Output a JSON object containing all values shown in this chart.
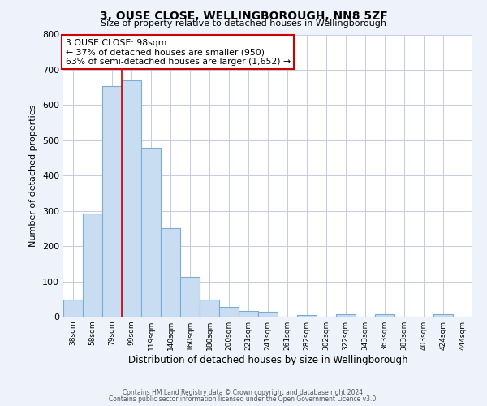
{
  "title": "3, OUSE CLOSE, WELLINGBOROUGH, NN8 5ZF",
  "subtitle": "Size of property relative to detached houses in Wellingborough",
  "xlabel": "Distribution of detached houses by size in Wellingborough",
  "ylabel": "Number of detached properties",
  "bin_labels": [
    "38sqm",
    "58sqm",
    "79sqm",
    "99sqm",
    "119sqm",
    "140sqm",
    "160sqm",
    "180sqm",
    "200sqm",
    "221sqm",
    "241sqm",
    "261sqm",
    "282sqm",
    "302sqm",
    "322sqm",
    "343sqm",
    "363sqm",
    "383sqm",
    "403sqm",
    "424sqm",
    "444sqm"
  ],
  "bar_heights": [
    48,
    293,
    653,
    670,
    478,
    250,
    113,
    48,
    27,
    15,
    13,
    0,
    5,
    0,
    7,
    0,
    7,
    0,
    0,
    7,
    0
  ],
  "bar_color": "#c9ddf2",
  "bar_edge_color": "#7aadd4",
  "vline_color": "#cc0000",
  "annotation_line1": "3 OUSE CLOSE: 98sqm",
  "annotation_line2": "← 37% of detached houses are smaller (950)",
  "annotation_line3": "63% of semi-detached houses are larger (1,652) →",
  "annotation_box_edge_color": "#cc0000",
  "ylim": [
    0,
    800
  ],
  "yticks": [
    0,
    100,
    200,
    300,
    400,
    500,
    600,
    700,
    800
  ],
  "footer_line1": "Contains HM Land Registry data © Crown copyright and database right 2024.",
  "footer_line2": "Contains public sector information licensed under the Open Government Licence v3.0.",
  "bg_color": "#eef2fa",
  "plot_bg_color": "#ffffff",
  "grid_color": "#c5cce0"
}
